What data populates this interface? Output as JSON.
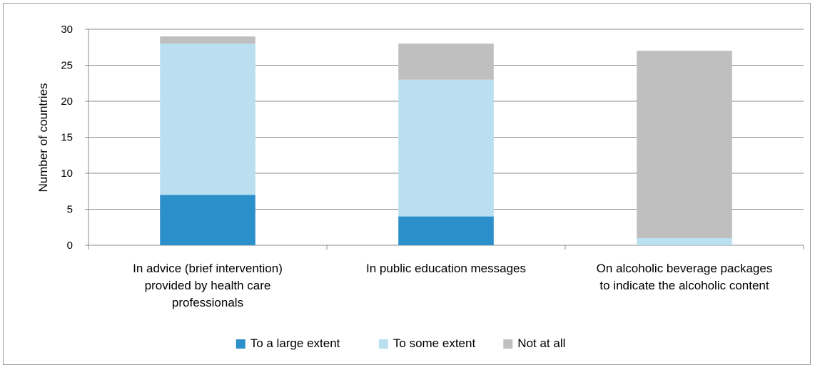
{
  "chart_data": {
    "type": "bar",
    "stacked": true,
    "title": "",
    "xlabel": "",
    "ylabel": "Number of countries",
    "ylim": [
      0,
      30
    ],
    "yticks": [
      0,
      5,
      10,
      15,
      20,
      25,
      30
    ],
    "grid": true,
    "legend_position": "bottom",
    "categories": [
      [
        "In advice (brief intervention)",
        "provided by health care",
        "professionals"
      ],
      [
        "In public education messages"
      ],
      [
        "On alcoholic beverage packages",
        "to indicate the alcoholic content"
      ]
    ],
    "series": [
      {
        "name": "To a large extent",
        "color": "#2b8fc9",
        "values": [
          7,
          4,
          0
        ]
      },
      {
        "name": "To some extent",
        "color": "#b9dff0",
        "values": [
          21,
          19,
          1
        ]
      },
      {
        "name": "Not at all",
        "color": "#bfbfbf",
        "values": [
          1,
          5,
          26
        ]
      }
    ]
  }
}
